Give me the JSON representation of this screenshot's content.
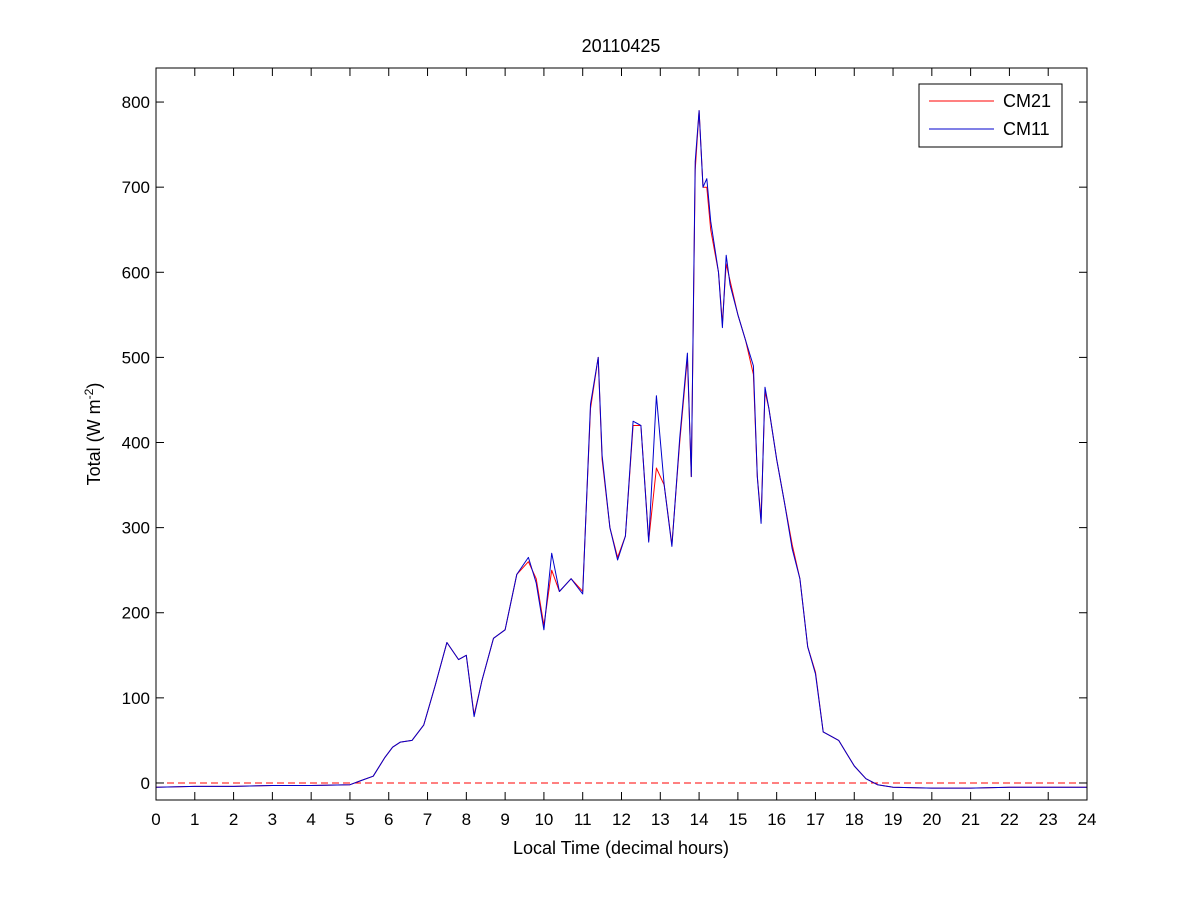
{
  "chart_data": {
    "type": "line",
    "title": "20110425",
    "xlabel": "Local Time (decimal hours)",
    "ylabel": "Total (W m",
    "ylabel_superscript": "-2",
    "ylabel_suffix": ")",
    "xlim": [
      0,
      24
    ],
    "ylim": [
      -20,
      840
    ],
    "xticks": [
      0,
      1,
      2,
      3,
      4,
      5,
      6,
      7,
      8,
      9,
      10,
      11,
      12,
      13,
      14,
      15,
      16,
      17,
      18,
      19,
      20,
      21,
      22,
      23,
      24
    ],
    "yticks": [
      0,
      100,
      200,
      300,
      400,
      500,
      600,
      700,
      800
    ],
    "grid": false,
    "legend_position": "top-right",
    "reference_line": {
      "y": 0,
      "color": "#ff0000",
      "style": "dashed"
    },
    "series": [
      {
        "name": "CM21",
        "color": "#ff0000",
        "x": [
          0,
          1,
          2,
          3,
          4,
          5,
          5.3,
          5.6,
          5.9,
          6.1,
          6.3,
          6.6,
          6.9,
          7.2,
          7.5,
          7.8,
          8.0,
          8.2,
          8.4,
          8.7,
          9.0,
          9.3,
          9.6,
          9.8,
          10.0,
          10.2,
          10.4,
          10.7,
          11.0,
          11.2,
          11.4,
          11.5,
          11.7,
          11.9,
          12.1,
          12.3,
          12.5,
          12.7,
          12.9,
          13.1,
          13.3,
          13.5,
          13.7,
          13.8,
          13.9,
          14.0,
          14.1,
          14.2,
          14.3,
          14.5,
          14.6,
          14.7,
          14.8,
          15.0,
          15.2,
          15.4,
          15.5,
          15.6,
          15.7,
          15.8,
          16.0,
          16.2,
          16.4,
          16.6,
          16.8,
          17.0,
          17.2,
          17.4,
          17.6,
          17.8,
          18.0,
          18.3,
          18.6,
          19.0,
          20.0,
          21.0,
          22.0,
          23.0,
          24.0
        ],
        "values": [
          -5,
          -4,
          -4,
          -3,
          -3,
          -2,
          3,
          8,
          30,
          42,
          48,
          50,
          68,
          115,
          165,
          145,
          150,
          80,
          120,
          170,
          180,
          245,
          260,
          240,
          185,
          250,
          225,
          240,
          225,
          440,
          500,
          380,
          300,
          265,
          290,
          420,
          420,
          285,
          370,
          350,
          280,
          400,
          500,
          360,
          720,
          790,
          700,
          700,
          650,
          600,
          540,
          610,
          590,
          550,
          520,
          480,
          360,
          310,
          460,
          440,
          380,
          330,
          280,
          240,
          160,
          130,
          60,
          55,
          50,
          35,
          20,
          5,
          -2,
          -5,
          -6,
          -6,
          -5,
          -5,
          -5
        ]
      },
      {
        "name": "CM11",
        "color": "#0000cc",
        "x": [
          0,
          1,
          2,
          3,
          4,
          5,
          5.3,
          5.6,
          5.9,
          6.1,
          6.3,
          6.6,
          6.9,
          7.2,
          7.5,
          7.8,
          8.0,
          8.2,
          8.4,
          8.7,
          9.0,
          9.3,
          9.6,
          9.8,
          10.0,
          10.2,
          10.4,
          10.7,
          11.0,
          11.2,
          11.4,
          11.5,
          11.7,
          11.9,
          12.1,
          12.3,
          12.5,
          12.7,
          12.9,
          13.1,
          13.3,
          13.5,
          13.7,
          13.8,
          13.9,
          14.0,
          14.1,
          14.2,
          14.3,
          14.5,
          14.6,
          14.7,
          14.8,
          15.0,
          15.2,
          15.4,
          15.5,
          15.6,
          15.7,
          15.8,
          16.0,
          16.2,
          16.4,
          16.6,
          16.8,
          17.0,
          17.2,
          17.4,
          17.6,
          17.8,
          18.0,
          18.3,
          18.6,
          19.0,
          20.0,
          21.0,
          22.0,
          23.0,
          24.0
        ],
        "values": [
          -5,
          -4,
          -4,
          -3,
          -3,
          -2,
          3,
          8,
          30,
          42,
          48,
          50,
          68,
          115,
          165,
          145,
          150,
          78,
          120,
          170,
          180,
          245,
          265,
          235,
          180,
          270,
          225,
          240,
          222,
          445,
          500,
          385,
          300,
          262,
          290,
          425,
          420,
          283,
          455,
          350,
          278,
          405,
          505,
          360,
          730,
          790,
          700,
          710,
          660,
          600,
          535,
          620,
          585,
          550,
          520,
          490,
          360,
          305,
          465,
          440,
          380,
          330,
          275,
          240,
          160,
          128,
          60,
          55,
          50,
          35,
          20,
          5,
          -2,
          -5,
          -6,
          -6,
          -5,
          -5,
          -5
        ]
      }
    ]
  }
}
